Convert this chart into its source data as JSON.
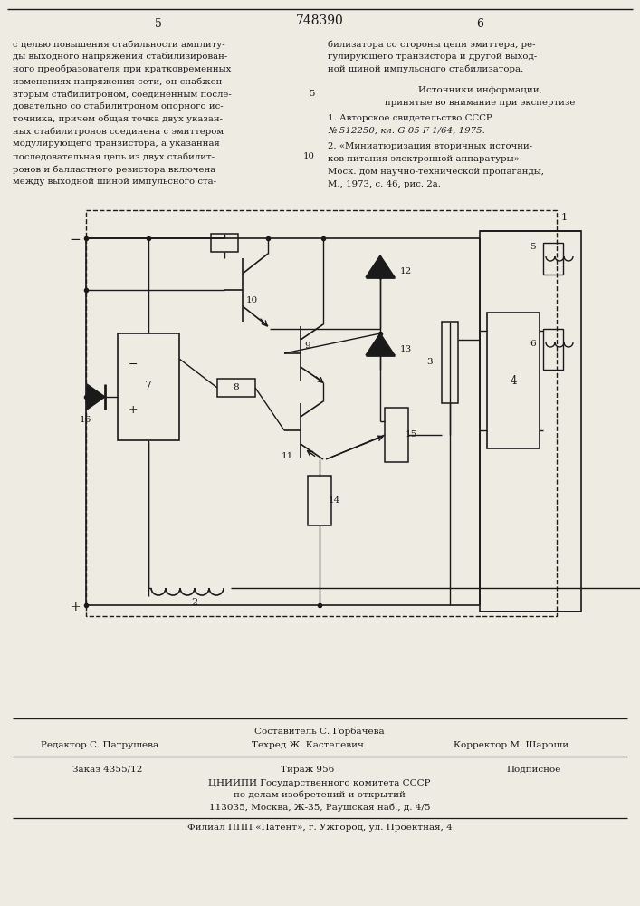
{
  "page_number_left": "5",
  "patent_number": "748390",
  "page_number_right": "6",
  "bg_color": "#eeebe3",
  "text_color": "#1a1a1a",
  "left_column_lines": [
    "с целью повышения стабильности амплиту-",
    "ды выходного напряжения стабилизирован-",
    "ного преобразователя при кратковременных",
    "изменениях напряжения сети, он снабжен",
    "вторым стабилитроном, соединенным после-",
    "довательно со стабилитроном опорного ис-",
    "точника, причем общая точка двух указан-",
    "ных стабилитронов соединена с эмиттером",
    "модулирующего транзистора, а указанная",
    "последовательная цепь из двух стабилит-",
    "ронов и балластного резистора включена",
    "между выходной шиной импульсного ста-"
  ],
  "right_column_lines": [
    "билизатора со стороны цепи эмиттера, ре-",
    "гулирующего транзистора и другой выход-",
    "ной шиной импульсного стабилизатора."
  ],
  "sources_header": "Источники информации,",
  "sources_subheader": "принятые во внимание при экспертизе",
  "source1_line1": "1. Авторское свидетельство СССР",
  "source1_line2": "№ 512250, кл. G 05 F 1/64, 1975.",
  "source2_line1": "2. «Миниатюризация вторичных источни-",
  "source2_line2": "ков питания электронной аппаратуры».",
  "source2_line3": "Моск. дом научно-технической пропаганды,",
  "source2_line4": "М., 1973, с. 46, рис. 2а.",
  "editor_line": "Редактор С. Патрушева",
  "composer_line": "Составитель С. Горбачева",
  "techred_line": "Техред Ж. Кастелевич",
  "corrector_line": "Корректор М. Шароши",
  "order_line": "Заказ 4355/12",
  "tiraz_line": "Тираж 956",
  "podpisnoe_line": "Подписное",
  "org_line1": "ЦНИИПИ Государственного комитета СССР",
  "org_line2": "по делам изобретений и открытий",
  "org_line3": "113035, Москва, Ж-35, Раушская наб., д. 4/5",
  "filial_line": "Филиал ППП «Патент», г. Ужгород, ул. Проектная, 4"
}
